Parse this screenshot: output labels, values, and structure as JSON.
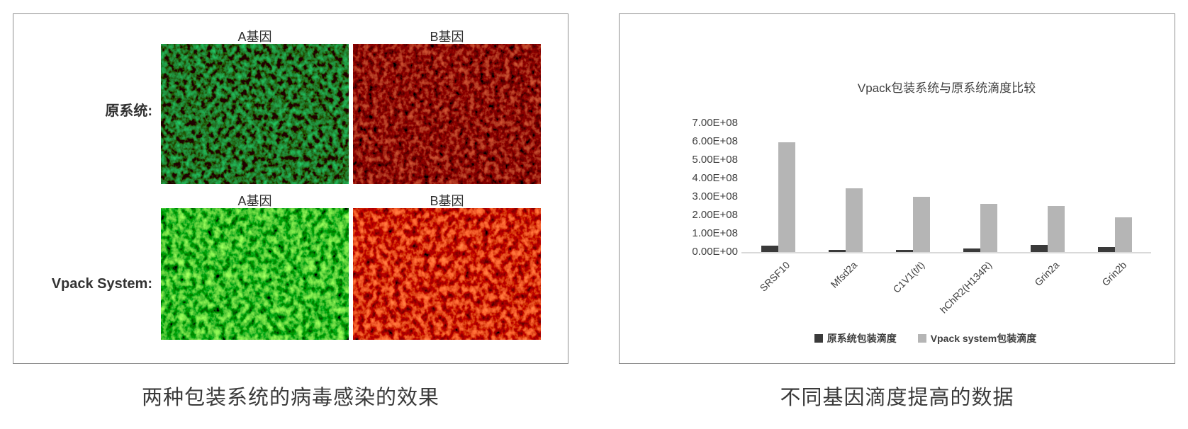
{
  "left_panel": {
    "caption": "两种包装系统的病毒感染的效果",
    "rows": [
      {
        "label": "原系统:",
        "images": [
          {
            "gene": "A基因",
            "channel": "green",
            "intensity": "dim"
          },
          {
            "gene": "B基因",
            "channel": "red",
            "intensity": "dim"
          }
        ]
      },
      {
        "label": "Vpack System:",
        "images": [
          {
            "gene": "A基因",
            "channel": "green",
            "intensity": "bright"
          },
          {
            "gene": "B基因",
            "channel": "red",
            "intensity": "bright"
          }
        ]
      }
    ]
  },
  "right_panel": {
    "caption": "不同基因滴度提高的数据"
  },
  "chart_data": {
    "type": "bar",
    "title": "Vpack包装系统与原系统滴度比较",
    "categories": [
      "SRSF10",
      "Mfsd2a",
      "C1V1(t/t)",
      "hChR2(H134R)",
      "Grin2a",
      "Grin2b"
    ],
    "series": [
      {
        "name": "原系统包装滴度",
        "color": "#3a3a3a",
        "values": [
          35000000,
          10000000,
          10000000,
          20000000,
          38000000,
          28000000
        ]
      },
      {
        "name": "Vpack system包装滴度",
        "color": "#b5b5b5",
        "values": [
          595000000,
          345000000,
          300000000,
          260000000,
          250000000,
          190000000
        ]
      }
    ],
    "xlabel": "",
    "ylabel": "",
    "ylim": [
      0,
      700000000
    ],
    "ytick_step": 100000000,
    "ytick_labels": [
      "0.00E+00",
      "1.00E+08",
      "2.00E+08",
      "3.00E+08",
      "4.00E+08",
      "5.00E+08",
      "6.00E+08",
      "7.00E+08"
    ],
    "grid": false,
    "legend_position": "bottom"
  },
  "colors": {
    "panel_border": "#8f8f8f",
    "axis_line": "#d9d9d9",
    "caption_text": "#3a3a3a"
  }
}
